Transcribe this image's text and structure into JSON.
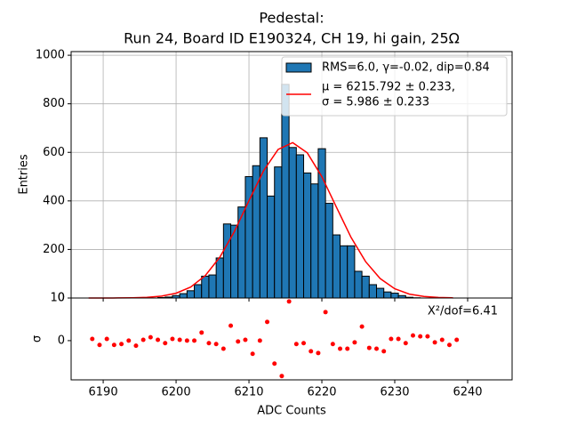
{
  "chart_data": [
    {
      "type": "histogram",
      "title": "Pedestal:",
      "subtitle": "Run 24, Board ID E190324, CH 19, hi gain, 25Ω",
      "ylabel": "Entries",
      "bins": [
        6197.5,
        6198.5,
        6199.5,
        6200.5,
        6201.5,
        6202.5,
        6203.5,
        6204.5,
        6205.5,
        6206.5,
        6207.5,
        6208.5,
        6209.5,
        6210.5,
        6211.5,
        6212.5,
        6213.5,
        6214.5,
        6215.5,
        6216.5,
        6217.5,
        6218.5,
        6219.5,
        6220.5,
        6221.5,
        6222.5,
        6223.5,
        6224.5,
        6225.5,
        6226.5,
        6227.5,
        6228.5,
        6229.5,
        6230.5,
        6231.5,
        6232.5,
        6233.5
      ],
      "series": [
        {
          "name": "RMS=6.0, γ=-0.02, dip=0.84",
          "color": "#1f77b4",
          "edgecolor": "#000000",
          "values": [
            2,
            4,
            10,
            18,
            30,
            55,
            90,
            95,
            165,
            305,
            300,
            375,
            500,
            545,
            660,
            420,
            540,
            880,
            620,
            590,
            515,
            470,
            615,
            390,
            260,
            215,
            215,
            110,
            90,
            55,
            40,
            25,
            20,
            10,
            3,
            1
          ]
        },
        {
          "name_lines": [
            "μ = 6215.792 ± 0.233,",
            "σ = 5.986 ± 0.233"
          ],
          "color": "#ff0000",
          "x": [
            6188,
            6190,
            6192,
            6194,
            6196,
            6198,
            6200,
            6202,
            6204,
            6206,
            6208,
            6210,
            6212,
            6214,
            6216,
            6218,
            6220,
            6222,
            6224,
            6226,
            6228,
            6230,
            6232,
            6234,
            6236,
            6238
          ],
          "values": [
            0.01,
            0.06,
            0.24,
            0.84,
            2.7,
            7.7,
            19.7,
            45,
            92,
            168,
            274,
            401,
            524,
            612,
            640,
            598,
            500,
            374,
            250,
            150,
            80,
            38,
            16,
            6.3,
            2.1,
            0.65
          ]
        }
      ],
      "xlim": [
        6185.6,
        6246.1
      ],
      "ylim": [
        0,
        1015
      ],
      "xticks": [
        6190,
        6200,
        6210,
        6220,
        6230,
        6240
      ],
      "yticks": [
        0,
        200,
        400,
        600,
        800,
        1000
      ],
      "grid": true,
      "legend": "upper right"
    },
    {
      "type": "scatter",
      "xlabel": "ADC Counts",
      "ylabel": "σ",
      "annotation": "X²/dof=6.41",
      "color": "#ff0000",
      "x": [
        6188.5,
        6189.5,
        6190.5,
        6191.5,
        6192.5,
        6193.5,
        6194.5,
        6195.5,
        6196.5,
        6197.5,
        6198.5,
        6199.5,
        6200.5,
        6201.5,
        6202.5,
        6203.5,
        6204.5,
        6205.5,
        6206.5,
        6207.5,
        6208.5,
        6209.5,
        6210.5,
        6211.5,
        6212.5,
        6213.5,
        6214.5,
        6215.5,
        6216.5,
        6217.5,
        6218.5,
        6219.5,
        6220.5,
        6221.5,
        6222.5,
        6223.5,
        6224.5,
        6225.5,
        6226.5,
        6227.5,
        6228.5,
        6229.5,
        6230.5,
        6231.5,
        6232.5,
        6233.5,
        6234.5,
        6235.5,
        6236.5,
        6237.5,
        6238.5
      ],
      "values": [
        0.4,
        -1,
        0.4,
        -1,
        -0.8,
        0,
        -1.2,
        0.2,
        0.8,
        0.2,
        -0.6,
        0.4,
        0.2,
        0,
        0,
        1.9,
        -0.6,
        -0.8,
        -1.9,
        3.5,
        -0.2,
        0.2,
        -3.1,
        0,
        4.4,
        -5.4,
        -8.3,
        9.2,
        -0.8,
        -0.6,
        -2.5,
        -2.9,
        6.7,
        -0.8,
        -1.9,
        -1.9,
        -0.4,
        3.3,
        -1.7,
        -1.9,
        -2.5,
        0.4,
        0.4,
        -0.6,
        1.2,
        1,
        1,
        -0.4,
        0.2,
        -1,
        0.2
      ],
      "xlim": [
        6185.6,
        6246.1
      ],
      "ylim": [
        -9.2,
        10
      ],
      "xticks": [
        6190,
        6200,
        6210,
        6220,
        6230,
        6240
      ],
      "yticks": [
        0,
        10
      ]
    }
  ]
}
